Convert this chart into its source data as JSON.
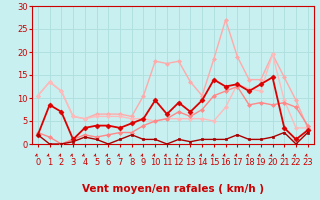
{
  "title": "",
  "xlabel": "Vent moyen/en rafales ( km/h )",
  "bg_color": "#c8f0f0",
  "grid_color": "#b0e0e0",
  "xlim": [
    -0.5,
    23.5
  ],
  "ylim": [
    0,
    30
  ],
  "yticks": [
    0,
    5,
    10,
    15,
    20,
    25,
    30
  ],
  "xticks": [
    0,
    1,
    2,
    3,
    4,
    5,
    6,
    7,
    8,
    9,
    10,
    11,
    12,
    13,
    14,
    15,
    16,
    17,
    18,
    19,
    20,
    21,
    22,
    23
  ],
  "series": [
    {
      "name": "light_pink_upper",
      "x": [
        0,
        1,
        2,
        3,
        4,
        5,
        6,
        7,
        8,
        9,
        10,
        11,
        12,
        13,
        14,
        15,
        16,
        17,
        18,
        19,
        20,
        21,
        22,
        23
      ],
      "y": [
        10.5,
        13.5,
        11.5,
        6,
        5.5,
        6.5,
        6.5,
        6.5,
        6,
        10.5,
        18,
        17.5,
        18,
        13.5,
        10.5,
        18.5,
        27,
        19,
        14,
        14,
        19.5,
        14.5,
        9.5,
        3.5
      ],
      "color": "#ffaaaa",
      "lw": 1.0,
      "marker": "D",
      "ms": 2.0
    },
    {
      "name": "light_pink_lower",
      "x": [
        0,
        1,
        2,
        3,
        4,
        5,
        6,
        7,
        8,
        9,
        10,
        11,
        12,
        13,
        14,
        15,
        16,
        17,
        18,
        19,
        20,
        21,
        22,
        23
      ],
      "y": [
        10.5,
        13.5,
        11.5,
        6,
        5.5,
        6.0,
        6.0,
        6.0,
        5.5,
        5.5,
        5.0,
        5.5,
        5.5,
        5.5,
        5.5,
        5.0,
        8.0,
        13.0,
        12.0,
        11.5,
        19.5,
        9.5,
        3.5,
        3.5
      ],
      "color": "#ffbbbb",
      "lw": 1.0,
      "marker": "D",
      "ms": 2.0
    },
    {
      "name": "medium_pink",
      "x": [
        0,
        1,
        2,
        3,
        4,
        5,
        6,
        7,
        8,
        9,
        10,
        11,
        12,
        13,
        14,
        15,
        16,
        17,
        18,
        19,
        20,
        21,
        22,
        23
      ],
      "y": [
        2.5,
        1.5,
        0,
        1,
        2,
        1.5,
        2,
        2.5,
        2.5,
        4,
        5,
        5.5,
        7,
        6,
        7.5,
        10.5,
        11.5,
        12.5,
        8.5,
        9,
        8.5,
        9,
        8,
        4
      ],
      "color": "#ff8888",
      "lw": 1.0,
      "marker": "D",
      "ms": 2.0
    },
    {
      "name": "dark_red_main",
      "x": [
        0,
        1,
        2,
        3,
        4,
        5,
        6,
        7,
        8,
        9,
        10,
        11,
        12,
        13,
        14,
        15,
        16,
        17,
        18,
        19,
        20,
        21,
        22,
        23
      ],
      "y": [
        2,
        8.5,
        7,
        1,
        3.5,
        4,
        4,
        3.5,
        4.5,
        5.5,
        9.5,
        6.5,
        9,
        7,
        9.5,
        14,
        12.5,
        13,
        11.5,
        13,
        14.5,
        3.5,
        1,
        3
      ],
      "color": "#dd0000",
      "lw": 1.3,
      "marker": "D",
      "ms": 2.5
    },
    {
      "name": "dark_red_low",
      "x": [
        0,
        1,
        2,
        3,
        4,
        5,
        6,
        7,
        8,
        9,
        10,
        11,
        12,
        13,
        14,
        15,
        16,
        17,
        18,
        19,
        20,
        21,
        22,
        23
      ],
      "y": [
        2,
        0,
        0,
        0.5,
        1.5,
        1,
        0,
        1,
        2,
        1,
        1,
        0,
        1,
        0.5,
        1,
        1,
        1,
        2,
        1,
        1,
        1.5,
        2.5,
        0,
        2.5
      ],
      "color": "#aa0000",
      "lw": 1.0,
      "marker": "s",
      "ms": 2.0
    }
  ],
  "xlabel_color": "#cc0000",
  "xlabel_fontsize": 7.5,
  "tick_fontsize": 6,
  "tick_color": "#cc0000",
  "arrow_color": "#cc0000",
  "spine_color": "#cc0000"
}
